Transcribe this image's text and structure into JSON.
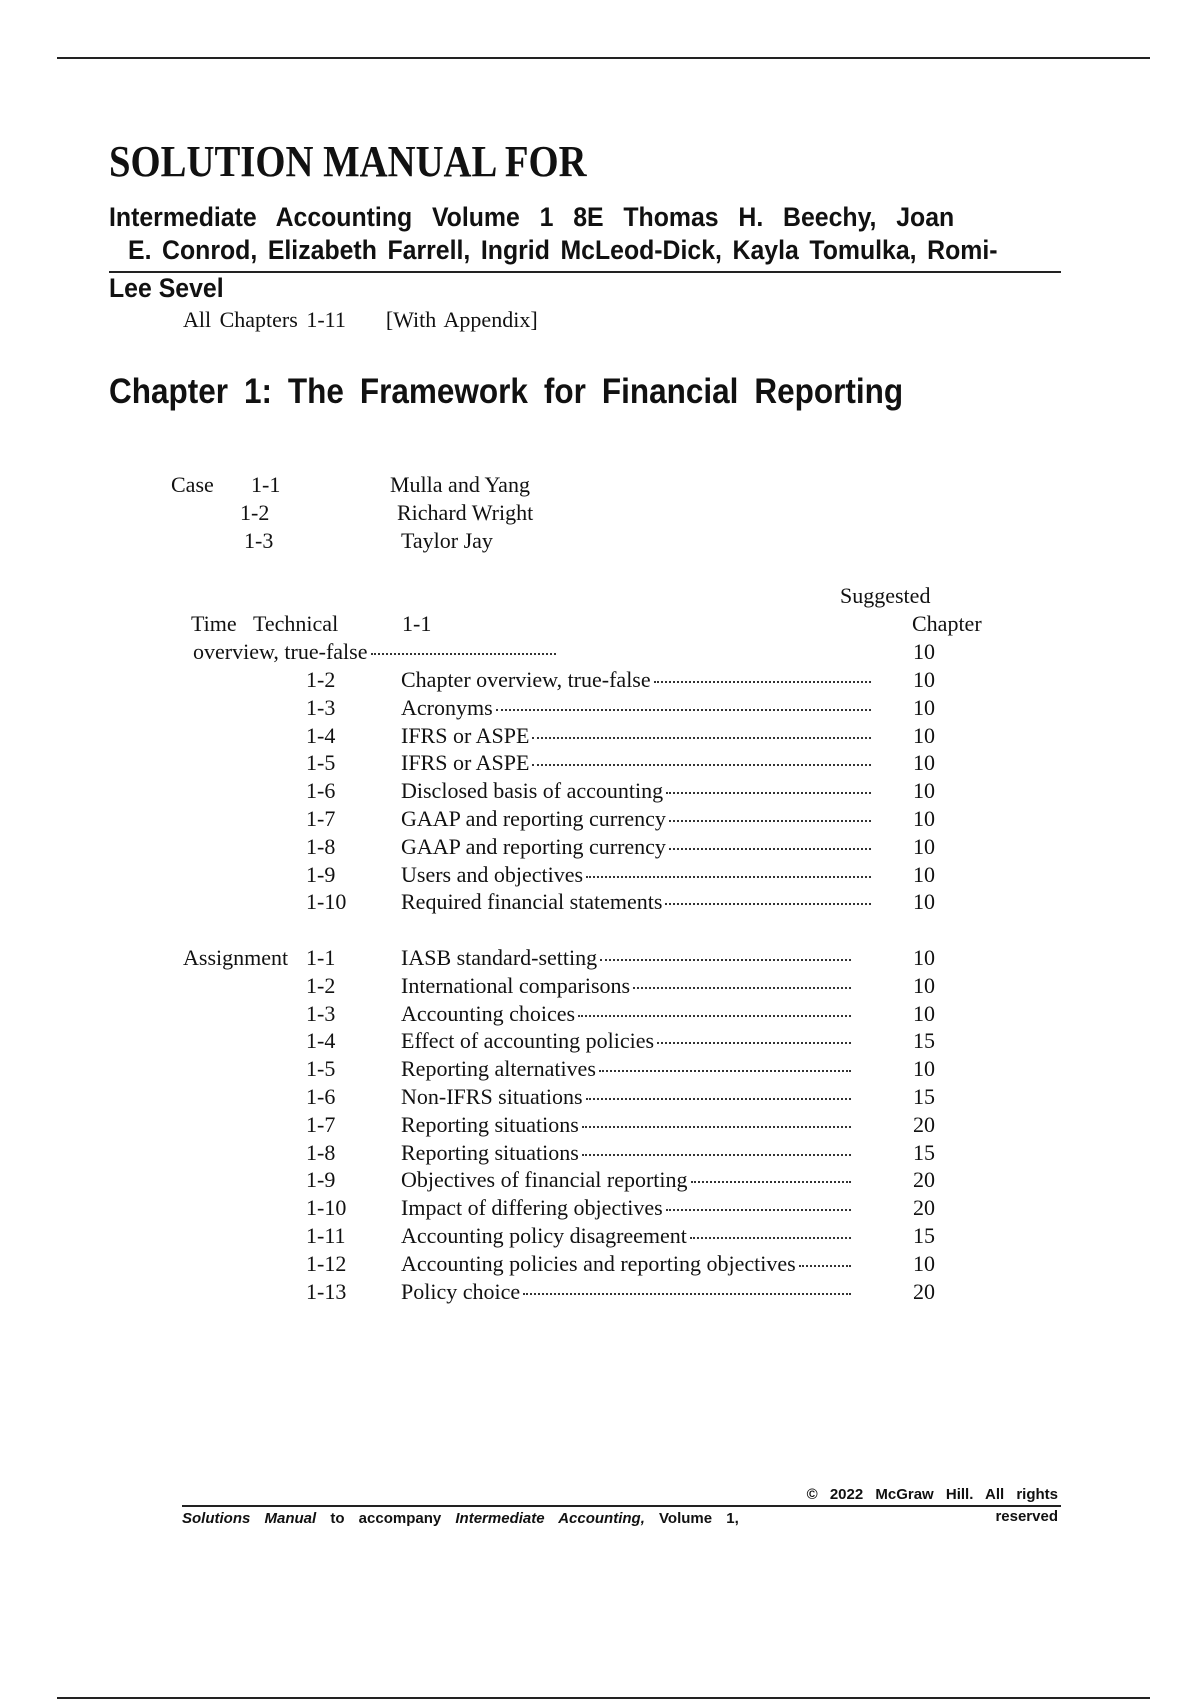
{
  "header": {
    "title": "SOLUTION MANUAL FOR",
    "subtitle_line1": "Intermediate Accounting Volume 1 8E Thomas H. Beechy, Joan",
    "subtitle_line2": "E. Conrod, Elizabeth Farrell, Ingrid McLeod-Dick, Kayla Tomulka, Romi-",
    "subtitle_line3": "Lee Sevel",
    "coverage": "All Chapters 1-11",
    "appendix": "[With Appendix]"
  },
  "chapter": {
    "heading": "Chapter 1: The Framework for Financial Reporting"
  },
  "cases": {
    "label": "Case",
    "items": [
      {
        "number": "1-1",
        "title": "Mulla and Yang"
      },
      {
        "number": "1-2",
        "title": "Richard Wright"
      },
      {
        "number": "1-3",
        "title": "Taylor Jay"
      }
    ]
  },
  "technical": {
    "suggested_label": "Suggested",
    "time_label": "Time",
    "technical_label": "Technical",
    "chapter_label": "Chapter",
    "first_number": "1-1",
    "first_desc": "overview, true-false",
    "first_time": "10",
    "items": [
      {
        "number": "1-2",
        "desc": "Chapter overview, true-false",
        "time": "10"
      },
      {
        "number": "1-3",
        "desc": "Acronyms",
        "time": "10"
      },
      {
        "number": "1-4",
        "desc": "IFRS or ASPE",
        "time": "10"
      },
      {
        "number": "1-5",
        "desc": "IFRS or ASPE",
        "time": "10"
      },
      {
        "number": "1-6",
        "desc": "Disclosed basis of accounting",
        "time": "10"
      },
      {
        "number": "1-7",
        "desc": "GAAP and reporting currency",
        "time": "10"
      },
      {
        "number": "1-8",
        "desc": "GAAP and reporting currency",
        "time": "10"
      },
      {
        "number": "1-9",
        "desc": "Users and objectives",
        "time": "10"
      },
      {
        "number": "1-10",
        "desc": "Required financial statements",
        "time": "10"
      }
    ]
  },
  "assignments": {
    "label": "Assignment",
    "items": [
      {
        "number": "1-1",
        "desc": "IASB standard-setting",
        "time": "10"
      },
      {
        "number": "1-2",
        "desc": "International comparisons",
        "time": "10"
      },
      {
        "number": "1-3",
        "desc": "Accounting choices",
        "time": "10"
      },
      {
        "number": "1-4",
        "desc": "Effect of accounting policies",
        "time": "15"
      },
      {
        "number": "1-5",
        "desc": "Reporting alternatives",
        "time": "10"
      },
      {
        "number": "1-6",
        "desc": "Non-IFRS situations",
        "time": "15"
      },
      {
        "number": "1-7",
        "desc": "Reporting situations",
        "time": "20"
      },
      {
        "number": "1-8",
        "desc": "Reporting situations",
        "time": "15"
      },
      {
        "number": "1-9",
        "desc": "Objectives of financial reporting",
        "time": "20"
      },
      {
        "number": "1-10",
        "desc": "Impact of differing objectives",
        "time": "20"
      },
      {
        "number": "1-11",
        "desc": "Accounting policy disagreement",
        "time": "15"
      },
      {
        "number": "1-12",
        "desc": "Accounting policies and reporting objectives",
        "time": "10"
      },
      {
        "number": "1-13",
        "desc": "Policy choice",
        "time": "20"
      }
    ]
  },
  "footer": {
    "copyright": "© 2022 McGraw Hill. All rights",
    "reserved": "reserved",
    "manual_part1": "Solutions Manual",
    "manual_part2": "to accompany",
    "manual_part3": "Intermediate Accounting,",
    "manual_part4": "Volume 1,"
  }
}
